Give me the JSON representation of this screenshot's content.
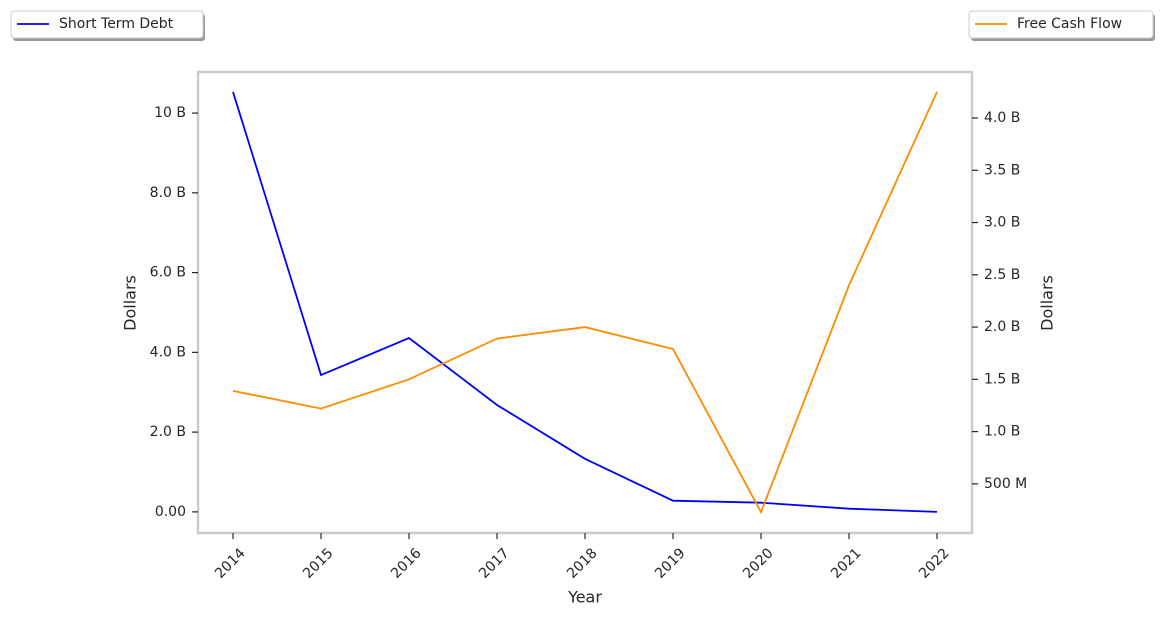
{
  "chart_data": {
    "type": "line",
    "x_label": "Year",
    "y_label": "Dollars",
    "y2_label": "Dollars",
    "categories": [
      "2014",
      "2015",
      "2016",
      "2017",
      "2018",
      "2019",
      "2020",
      "2021",
      "2022"
    ],
    "series": [
      {
        "name": "Short Term Debt",
        "color": "#0000ff",
        "axis": "y",
        "values": [
          10530000000,
          3430000000,
          4360000000,
          2680000000,
          1330000000,
          280000000,
          230000000,
          80000000,
          0
        ]
      },
      {
        "name": "Free Cash Flow",
        "color": "#ff8c00",
        "axis": "y2",
        "values": [
          1390000000,
          1220000000,
          1500000000,
          1890000000,
          2000000000,
          1790000000,
          230000000,
          2400000000,
          4250000000
        ]
      }
    ],
    "ylim": [
      -530000000,
      11030000000
    ],
    "yticks": [
      {
        "value": 0,
        "label": "0.00"
      },
      {
        "value": 2000000000,
        "label": "2.0 B"
      },
      {
        "value": 4000000000,
        "label": "4.0 B"
      },
      {
        "value": 6000000000,
        "label": "6.0 B"
      },
      {
        "value": 8000000000,
        "label": "8.0 B"
      },
      {
        "value": 10000000000,
        "label": "10 B"
      }
    ],
    "y2lim": [
      30000000,
      4440000000
    ],
    "y2ticks": [
      {
        "value": 500000000,
        "label": "500 M"
      },
      {
        "value": 1000000000,
        "label": "1.0 B"
      },
      {
        "value": 1500000000,
        "label": "1.5 B"
      },
      {
        "value": 2000000000,
        "label": "2.0 B"
      },
      {
        "value": 2500000000,
        "label": "2.5 B"
      },
      {
        "value": 3000000000,
        "label": "3.0 B"
      },
      {
        "value": 3500000000,
        "label": "3.5 B"
      },
      {
        "value": 4000000000,
        "label": "4.0 B"
      }
    ],
    "grid": false
  }
}
